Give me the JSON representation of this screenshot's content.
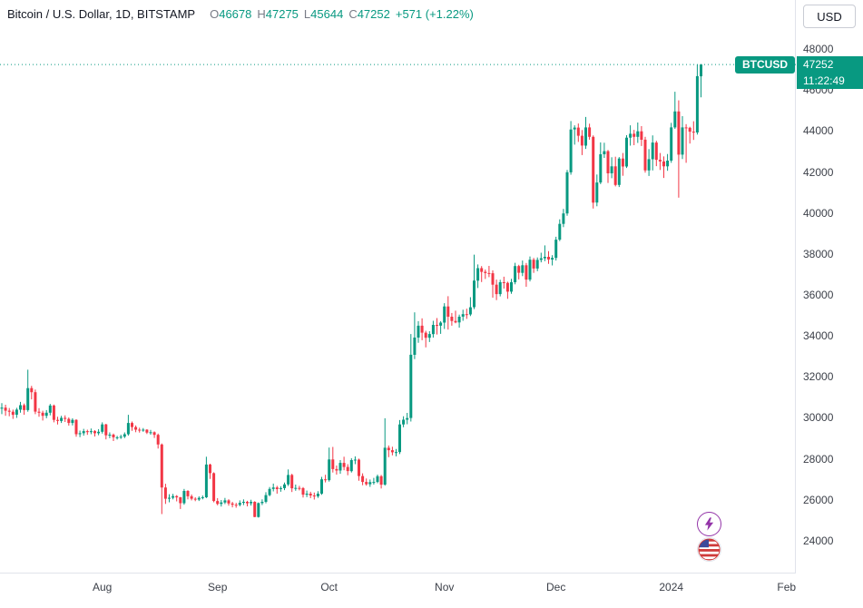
{
  "header": {
    "symbol_title": "Bitcoin / U.S. Dollar, 1D, BITSTAMP",
    "ohlc": {
      "o_label": "O",
      "o": "46678",
      "h_label": "H",
      "h": "47275",
      "l_label": "L",
      "l": "45644",
      "c_label": "C",
      "c": "47252",
      "change": "+571 (+1.22%)"
    }
  },
  "toolbar": {
    "currency_button": "USD"
  },
  "price_tag": {
    "symbol": "BTCUSD",
    "price": "47252",
    "countdown": "11:22:49"
  },
  "icons": {
    "lightning": "lightning-bolt-icon",
    "flag": "us-flag-icon"
  },
  "colors": {
    "up": "#089981",
    "down": "#f23645",
    "accent": "#089981",
    "axis_text": "#3c4049",
    "border": "#e0e3eb",
    "purple": "#9334a8",
    "flag_red": "#cf3a3a",
    "flag_blue": "#3b4a9b"
  },
  "chart_data": {
    "type": "candlestick",
    "symbol": "BTCUSD",
    "interval": "1D",
    "exchange": "BITSTAMP",
    "title": "Bitcoin / U.S. Dollar",
    "current_price": 47252,
    "last_ohlc": {
      "open": 46678,
      "high": 47275,
      "low": 45644,
      "close": 47252,
      "change": 571,
      "change_pct": 1.22
    },
    "y_axis": {
      "min": 22400,
      "max": 50400,
      "ticks": [
        48000,
        46000,
        44000,
        42000,
        40000,
        38000,
        36000,
        34000,
        32000,
        30000,
        28000,
        26000,
        24000
      ]
    },
    "x_axis": {
      "total_slots": 214,
      "month_ticks": [
        {
          "label": "Aug",
          "index": 27
        },
        {
          "label": "Sep",
          "index": 58
        },
        {
          "label": "Oct",
          "index": 88
        },
        {
          "label": "Nov",
          "index": 119
        },
        {
          "label": "Dec",
          "index": 149
        },
        {
          "label": "2024",
          "index": 180
        },
        {
          "label": "Feb",
          "index": 211
        }
      ]
    },
    "grid": false,
    "candles": [
      [
        30450,
        30720,
        30180,
        30500
      ],
      [
        30500,
        30640,
        30100,
        30350
      ],
      [
        30350,
        30480,
        30080,
        30300
      ],
      [
        30300,
        30400,
        29950,
        30150
      ],
      [
        30150,
        30490,
        30000,
        30400
      ],
      [
        30400,
        30780,
        30250,
        30620
      ],
      [
        30620,
        30700,
        30150,
        30380
      ],
      [
        30380,
        32350,
        30300,
        31450
      ],
      [
        31450,
        31560,
        30900,
        31250
      ],
      [
        31250,
        31380,
        30180,
        30300
      ],
      [
        30300,
        30470,
        30050,
        30250
      ],
      [
        30250,
        30350,
        29870,
        30100
      ],
      [
        30100,
        30380,
        29980,
        30250
      ],
      [
        30250,
        30680,
        30120,
        30600
      ],
      [
        30600,
        30650,
        29780,
        29900
      ],
      [
        29900,
        30050,
        29680,
        29850
      ],
      [
        29850,
        30100,
        29750,
        30000
      ],
      [
        30000,
        30120,
        29800,
        29950
      ],
      [
        29950,
        30020,
        29620,
        29750
      ],
      [
        29750,
        29980,
        29630,
        29900
      ],
      [
        29900,
        29930,
        29080,
        29200
      ],
      [
        29200,
        29380,
        29060,
        29250
      ],
      [
        29250,
        29460,
        29130,
        29350
      ],
      [
        29350,
        29420,
        29170,
        29300
      ],
      [
        29300,
        29480,
        29200,
        29350
      ],
      [
        29350,
        29400,
        29090,
        29250
      ],
      [
        29250,
        29450,
        29150,
        29320
      ],
      [
        29320,
        29780,
        29230,
        29680
      ],
      [
        29680,
        29710,
        28950,
        29150
      ],
      [
        29150,
        29290,
        29010,
        29180
      ],
      [
        29180,
        29230,
        28870,
        29050
      ],
      [
        29050,
        29120,
        28940,
        29050
      ],
      [
        29050,
        29180,
        28970,
        29080
      ],
      [
        29080,
        29290,
        29010,
        29200
      ],
      [
        29200,
        30150,
        29130,
        29750
      ],
      [
        29750,
        29820,
        29370,
        29550
      ],
      [
        29550,
        29630,
        29300,
        29420
      ],
      [
        29420,
        29520,
        29280,
        29400
      ],
      [
        29400,
        29500,
        29320,
        29420
      ],
      [
        29420,
        29450,
        29210,
        29280
      ],
      [
        29280,
        29410,
        29180,
        29300
      ],
      [
        29300,
        29340,
        29020,
        29170
      ],
      [
        29170,
        29230,
        28500,
        28700
      ],
      [
        28700,
        28750,
        25300,
        26600
      ],
      [
        26600,
        26780,
        25800,
        26050
      ],
      [
        26050,
        26270,
        25880,
        26100
      ],
      [
        26100,
        26290,
        26020,
        26180
      ],
      [
        26180,
        26230,
        25920,
        26120
      ],
      [
        26120,
        26140,
        25550,
        25830
      ],
      [
        25830,
        26530,
        25760,
        26430
      ],
      [
        26430,
        26470,
        26020,
        26170
      ],
      [
        26170,
        26260,
        25970,
        26050
      ],
      [
        26050,
        26120,
        25930,
        26010
      ],
      [
        26010,
        26170,
        25940,
        26090
      ],
      [
        26090,
        26210,
        26020,
        26120
      ],
      [
        26120,
        28100,
        26080,
        27720
      ],
      [
        27720,
        27760,
        27020,
        27300
      ],
      [
        27300,
        27340,
        25880,
        25940
      ],
      [
        25940,
        26080,
        25730,
        25800
      ],
      [
        25800,
        25990,
        25670,
        25870
      ],
      [
        25870,
        26090,
        25790,
        25970
      ],
      [
        25970,
        26030,
        25710,
        25820
      ],
      [
        25820,
        25900,
        25630,
        25760
      ],
      [
        25760,
        25850,
        25610,
        25750
      ],
      [
        25750,
        25970,
        25680,
        25850
      ],
      [
        25850,
        26020,
        25740,
        25900
      ],
      [
        25900,
        25950,
        25680,
        25830
      ],
      [
        25830,
        26000,
        25720,
        25900
      ],
      [
        25900,
        25930,
        25150,
        25160
      ],
      [
        25160,
        25870,
        25130,
        25840
      ],
      [
        25840,
        26020,
        25740,
        25900
      ],
      [
        25900,
        26370,
        25830,
        26230
      ],
      [
        26230,
        26620,
        26170,
        26530
      ],
      [
        26530,
        26790,
        26410,
        26600
      ],
      [
        26600,
        26680,
        26300,
        26520
      ],
      [
        26520,
        26660,
        26390,
        26570
      ],
      [
        26570,
        26840,
        26470,
        26750
      ],
      [
        26750,
        27480,
        26670,
        27210
      ],
      [
        27210,
        27270,
        26380,
        26560
      ],
      [
        26560,
        26740,
        26440,
        26580
      ],
      [
        26580,
        26680,
        26460,
        26570
      ],
      [
        26570,
        26620,
        26110,
        26250
      ],
      [
        26250,
        26450,
        26130,
        26300
      ],
      [
        26300,
        26390,
        26080,
        26210
      ],
      [
        26210,
        26350,
        26010,
        26170
      ],
      [
        26170,
        26420,
        26090,
        26300
      ],
      [
        26300,
        27120,
        26240,
        27000
      ],
      [
        27000,
        27220,
        26850,
        26960
      ],
      [
        26960,
        28550,
        26890,
        27970
      ],
      [
        27970,
        28580,
        27330,
        27500
      ],
      [
        27500,
        27670,
        27230,
        27430
      ],
      [
        27430,
        27940,
        27270,
        27800
      ],
      [
        27800,
        28100,
        27440,
        27600
      ],
      [
        27600,
        27740,
        27200,
        27400
      ],
      [
        27400,
        28030,
        27330,
        27940
      ],
      [
        27940,
        28120,
        27740,
        27960
      ],
      [
        27960,
        28010,
        26930,
        27160
      ],
      [
        27160,
        27290,
        26710,
        26870
      ],
      [
        26870,
        27040,
        26690,
        26760
      ],
      [
        26760,
        26990,
        26630,
        26860
      ],
      [
        26860,
        27070,
        26740,
        26870
      ],
      [
        26870,
        27230,
        26810,
        27150
      ],
      [
        27150,
        27210,
        26550,
        26740
      ],
      [
        26740,
        29980,
        26690,
        28540
      ],
      [
        28540,
        28650,
        28080,
        28420
      ],
      [
        28420,
        28590,
        28170,
        28320
      ],
      [
        28320,
        28480,
        28120,
        28330
      ],
      [
        28330,
        29890,
        28230,
        29680
      ],
      [
        29680,
        30080,
        29540,
        29910
      ],
      [
        29910,
        30240,
        29690,
        29990
      ],
      [
        29990,
        34090,
        29820,
        33080
      ],
      [
        33080,
        35150,
        32870,
        33920
      ],
      [
        33920,
        34720,
        33660,
        34500
      ],
      [
        34500,
        34860,
        33790,
        34160
      ],
      [
        34160,
        34250,
        33440,
        33910
      ],
      [
        33910,
        34230,
        33700,
        34090
      ],
      [
        34090,
        34740,
        33920,
        34540
      ],
      [
        34540,
        34870,
        34070,
        34500
      ],
      [
        34500,
        34720,
        34100,
        34650
      ],
      [
        34650,
        35600,
        34340,
        35440
      ],
      [
        35440,
        35940,
        34310,
        34940
      ],
      [
        34940,
        35120,
        34500,
        34730
      ],
      [
        34730,
        35230,
        34620,
        34660
      ],
      [
        34660,
        35040,
        34400,
        34940
      ],
      [
        34940,
        35280,
        34740,
        35060
      ],
      [
        35060,
        35330,
        34830,
        35050
      ],
      [
        35050,
        35890,
        34970,
        35400
      ],
      [
        35400,
        37970,
        35310,
        36700
      ],
      [
        36700,
        37490,
        36340,
        37310
      ],
      [
        37310,
        37410,
        36630,
        37130
      ],
      [
        37130,
        37240,
        36780,
        37070
      ],
      [
        37070,
        37420,
        36870,
        37060
      ],
      [
        37060,
        37200,
        35870,
        36500
      ],
      [
        36500,
        36750,
        35750,
        36040
      ],
      [
        36040,
        36740,
        35930,
        36620
      ],
      [
        36620,
        36890,
        36310,
        36590
      ],
      [
        36590,
        36650,
        35810,
        36160
      ],
      [
        36160,
        36790,
        36060,
        36620
      ],
      [
        36620,
        37570,
        36520,
        37410
      ],
      [
        37410,
        37470,
        36760,
        37080
      ],
      [
        37080,
        37680,
        36920,
        37450
      ],
      [
        37450,
        37560,
        36400,
        36750
      ],
      [
        36750,
        37880,
        36660,
        37720
      ],
      [
        37720,
        37810,
        37080,
        37290
      ],
      [
        37290,
        37830,
        37160,
        37710
      ],
      [
        37710,
        38060,
        37590,
        37790
      ],
      [
        37790,
        38420,
        37650,
        37860
      ],
      [
        37860,
        38140,
        37520,
        37730
      ],
      [
        37730,
        37940,
        37440,
        37810
      ],
      [
        37810,
        38840,
        37680,
        38700
      ],
      [
        38700,
        39690,
        38630,
        39470
      ],
      [
        39470,
        40200,
        39310,
        39980
      ],
      [
        39980,
        42100,
        39870,
        41990
      ],
      [
        41990,
        44490,
        41870,
        44080
      ],
      [
        44080,
        44280,
        43340,
        44170
      ],
      [
        44170,
        44370,
        43470,
        43770
      ],
      [
        43770,
        44050,
        42830,
        43290
      ],
      [
        43290,
        44690,
        43130,
        44180
      ],
      [
        44180,
        44360,
        43580,
        43720
      ],
      [
        43720,
        43790,
        40220,
        40510
      ],
      [
        40510,
        41880,
        40330,
        41490
      ],
      [
        41490,
        43450,
        41410,
        42870
      ],
      [
        42870,
        43430,
        42690,
        43020
      ],
      [
        43020,
        43080,
        41470,
        41940
      ],
      [
        41940,
        42720,
        41700,
        42280
      ],
      [
        42280,
        42750,
        41300,
        41370
      ],
      [
        41370,
        42730,
        41270,
        42660
      ],
      [
        42660,
        42930,
        41820,
        42270
      ],
      [
        42270,
        43800,
        42200,
        43680
      ],
      [
        43680,
        44280,
        43290,
        43870
      ],
      [
        43870,
        44060,
        43310,
        43720
      ],
      [
        43720,
        44420,
        43420,
        43990
      ],
      [
        43990,
        44240,
        43270,
        43580
      ],
      [
        43580,
        43720,
        41970,
        42080
      ],
      [
        42080,
        43120,
        41810,
        42630
      ],
      [
        42630,
        43790,
        42080,
        43440
      ],
      [
        43440,
        43530,
        42290,
        42600
      ],
      [
        42600,
        42930,
        42100,
        42520
      ],
      [
        42520,
        42760,
        41710,
        42280
      ],
      [
        42280,
        42880,
        42060,
        42560
      ],
      [
        42560,
        44400,
        42450,
        44180
      ],
      [
        44180,
        45920,
        44110,
        44960
      ],
      [
        44960,
        45500,
        40750,
        42850
      ],
      [
        42850,
        44730,
        42640,
        44180
      ],
      [
        44180,
        44340,
        42450,
        44160
      ],
      [
        44160,
        44210,
        43390,
        43970
      ],
      [
        43970,
        44480,
        43570,
        43930
      ],
      [
        43930,
        47250,
        43830,
        46681
      ],
      [
        46678,
        47275,
        45644,
        47252
      ]
    ]
  }
}
